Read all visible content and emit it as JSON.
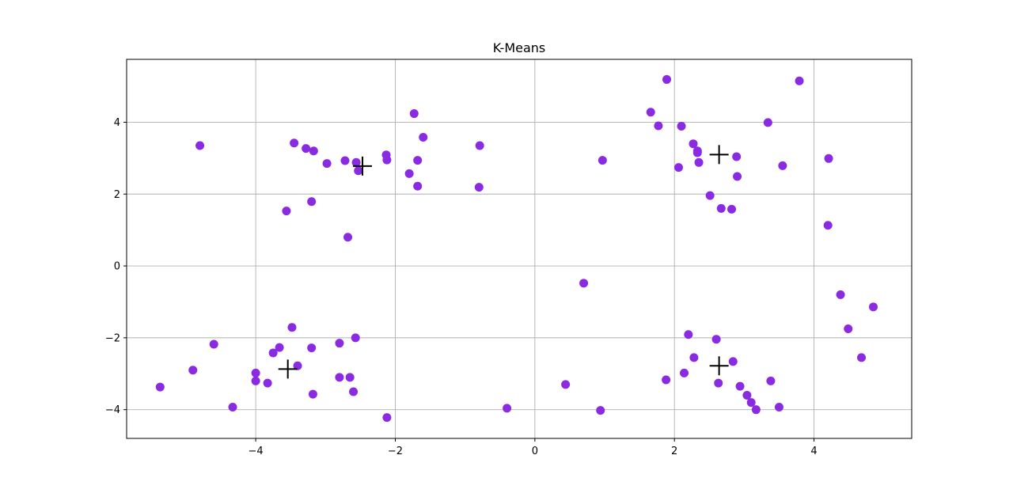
{
  "chart_data": {
    "type": "scatter",
    "title": "K-Means",
    "xlabel": "",
    "ylabel": "",
    "xlim": [
      -5.85,
      5.4
    ],
    "ylim": [
      -4.8,
      5.75
    ],
    "xticks": [
      -4,
      -2,
      0,
      2,
      4
    ],
    "yticks": [
      -4,
      -2,
      0,
      2,
      4
    ],
    "xtick_labels": [
      "−4",
      "−2",
      "0",
      "2",
      "4"
    ],
    "ytick_labels": [
      "−4",
      "−2",
      "0",
      "2",
      "4"
    ],
    "grid": true,
    "colors": {
      "points": "#8a2be2",
      "centroids": "#000000",
      "grid": "#b0b0b0",
      "axes": "#000000"
    },
    "points": [
      [
        -4.8,
        3.35
      ],
      [
        -3.45,
        3.42
      ],
      [
        -3.28,
        3.27
      ],
      [
        -3.17,
        3.2
      ],
      [
        -2.98,
        2.85
      ],
      [
        -2.72,
        2.93
      ],
      [
        -2.56,
        2.88
      ],
      [
        -2.53,
        2.65
      ],
      [
        -2.13,
        3.09
      ],
      [
        -2.12,
        2.95
      ],
      [
        -1.73,
        4.24
      ],
      [
        -1.6,
        3.58
      ],
      [
        -1.8,
        2.57
      ],
      [
        -1.68,
        2.94
      ],
      [
        -1.68,
        2.22
      ],
      [
        -0.79,
        3.35
      ],
      [
        -0.8,
        2.19
      ],
      [
        -3.56,
        1.53
      ],
      [
        -3.2,
        1.79
      ],
      [
        -2.68,
        0.8
      ],
      [
        -5.37,
        -3.37
      ],
      [
        -4.9,
        -2.9
      ],
      [
        -4.6,
        -2.18
      ],
      [
        -4.33,
        -3.93
      ],
      [
        -4.0,
        -2.98
      ],
      [
        -4.0,
        -3.2
      ],
      [
        -3.83,
        -3.26
      ],
      [
        -3.75,
        -2.42
      ],
      [
        -3.66,
        -2.27
      ],
      [
        -3.48,
        -1.71
      ],
      [
        -3.4,
        -2.78
      ],
      [
        -3.2,
        -2.28
      ],
      [
        -3.18,
        -3.57
      ],
      [
        -2.8,
        -2.15
      ],
      [
        -2.8,
        -3.1
      ],
      [
        -2.65,
        -3.1
      ],
      [
        -2.57,
        -2.0
      ],
      [
        -2.6,
        -3.5
      ],
      [
        -2.12,
        -4.22
      ],
      [
        1.66,
        4.28
      ],
      [
        1.89,
        5.19
      ],
      [
        1.77,
        3.9
      ],
      [
        2.1,
        3.89
      ],
      [
        2.27,
        3.4
      ],
      [
        2.33,
        3.2
      ],
      [
        2.33,
        3.15
      ],
      [
        2.35,
        2.88
      ],
      [
        2.06,
        2.74
      ],
      [
        2.51,
        1.96
      ],
      [
        2.67,
        1.6
      ],
      [
        2.82,
        1.58
      ],
      [
        2.89,
        3.04
      ],
      [
        2.9,
        2.49
      ],
      [
        3.34,
        3.99
      ],
      [
        3.55,
        2.79
      ],
      [
        3.79,
        5.15
      ],
      [
        4.21,
        2.99
      ],
      [
        4.2,
        1.13
      ],
      [
        0.97,
        2.94
      ],
      [
        0.7,
        -0.48
      ],
      [
        0.44,
        -3.3
      ],
      [
        -0.4,
        -3.96
      ],
      [
        0.94,
        -4.02
      ],
      [
        1.88,
        -3.17
      ],
      [
        2.14,
        -2.98
      ],
      [
        2.2,
        -1.91
      ],
      [
        2.28,
        -2.55
      ],
      [
        2.6,
        -2.04
      ],
      [
        2.63,
        -3.26
      ],
      [
        2.84,
        -2.66
      ],
      [
        2.94,
        -3.35
      ],
      [
        3.04,
        -3.6
      ],
      [
        3.1,
        -3.8
      ],
      [
        3.17,
        -4.0
      ],
      [
        3.38,
        -3.2
      ],
      [
        3.5,
        -3.93
      ],
      [
        4.38,
        -0.8
      ],
      [
        4.49,
        -1.75
      ],
      [
        4.68,
        -2.55
      ],
      [
        4.85,
        -1.14
      ]
    ],
    "centroids": [
      [
        -2.47,
        2.78
      ],
      [
        2.64,
        3.1
      ],
      [
        -3.54,
        -2.87
      ],
      [
        2.64,
        -2.78
      ]
    ]
  }
}
